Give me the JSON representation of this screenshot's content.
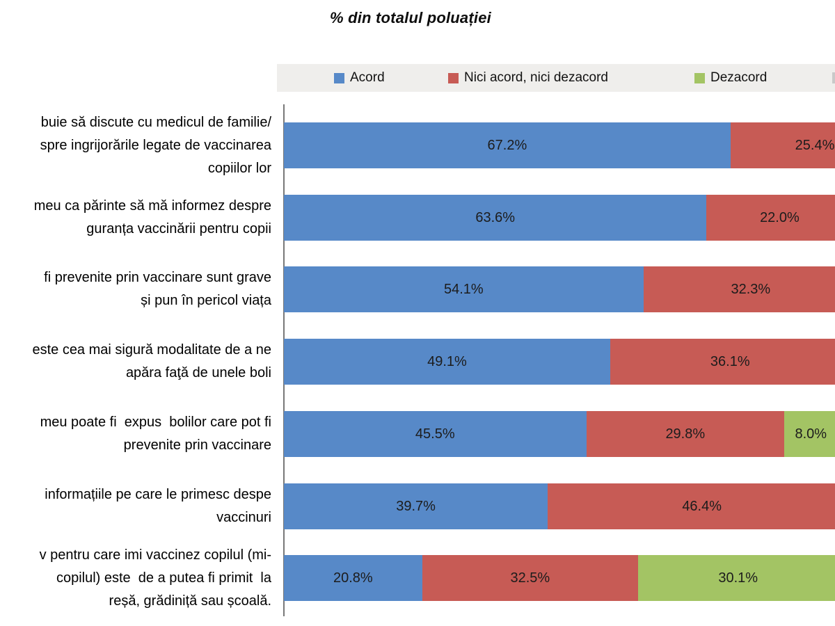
{
  "chart_data": {
    "type": "bar",
    "orientation": "horizontal",
    "stacked": true,
    "title": "% din totalul poluației",
    "legend_position": "top",
    "x_axis": {
      "min": 0,
      "max": 100,
      "unit": "%",
      "visible_max_pct": 83,
      "clipped_right": true
    },
    "grid": false,
    "series": [
      {
        "name": "Acord",
        "color": "#5789C8"
      },
      {
        "name": "Nici acord, nici dezacord",
        "color": "#C75B55"
      },
      {
        "name": "Dezacord",
        "color": "#A3C464"
      }
    ],
    "rows": [
      {
        "label_lines": [
          "buie să discute cu medicul de familie/",
          "spre ingrijorările legate de vaccinarea",
          "copiilor lor"
        ],
        "segments": [
          {
            "value": 67.2,
            "label": "67.2%"
          },
          {
            "value": 25.4,
            "label": "25.4%"
          }
        ]
      },
      {
        "label_lines": [
          "meu ca părinte să mă informez despre",
          "guranța vaccinării pentru copii"
        ],
        "segments": [
          {
            "value": 63.6,
            "label": "63.6%"
          },
          {
            "value": 22.0,
            "label": "22.0%"
          }
        ]
      },
      {
        "label_lines": [
          "fi prevenite prin vaccinare sunt grave",
          "și pun în pericol viața"
        ],
        "segments": [
          {
            "value": 54.1,
            "label": "54.1%"
          },
          {
            "value": 32.3,
            "label": "32.3%"
          }
        ]
      },
      {
        "label_lines": [
          "este cea mai sigură modalitate de a ne",
          "apăra faţă de unele boli"
        ],
        "segments": [
          {
            "value": 49.1,
            "label": "49.1%"
          },
          {
            "value": 36.1,
            "label": "36.1%"
          }
        ]
      },
      {
        "label_lines": [
          "meu poate fi  expus  bolilor care pot fi",
          "prevenite prin vaccinare"
        ],
        "segments": [
          {
            "value": 45.5,
            "label": "45.5%"
          },
          {
            "value": 29.8,
            "label": "29.8%"
          },
          {
            "value": 8.0,
            "label": "8.0%"
          }
        ]
      },
      {
        "label_lines": [
          "informațiile pe care le primesc despe",
          "vaccinuri"
        ],
        "segments": [
          {
            "value": 39.7,
            "label": "39.7%"
          },
          {
            "value": 46.4,
            "label": "46.4%"
          }
        ]
      },
      {
        "label_lines": [
          "v pentru care imi vaccinez copilul (mi-",
          "copilul) este  de a putea fi primit  la",
          "reșă, grădiniță sau școală."
        ],
        "segments": [
          {
            "value": 20.8,
            "label": "20.8%"
          },
          {
            "value": 32.5,
            "label": "32.5%"
          },
          {
            "value": 30.1,
            "label": "30.1%"
          }
        ]
      }
    ]
  },
  "legend": {
    "items": [
      {
        "label": "Acord",
        "color": "#5789C8"
      },
      {
        "label": "Nici acord, nici dezacord",
        "color": "#C75B55"
      },
      {
        "label": "Dezacord",
        "color": "#A3C464"
      }
    ],
    "partial_fourth_item_visible": true
  },
  "colors": {
    "legend_background": "#efeeec",
    "axis_line": "#787878",
    "value_text": "#1c1c1c"
  }
}
